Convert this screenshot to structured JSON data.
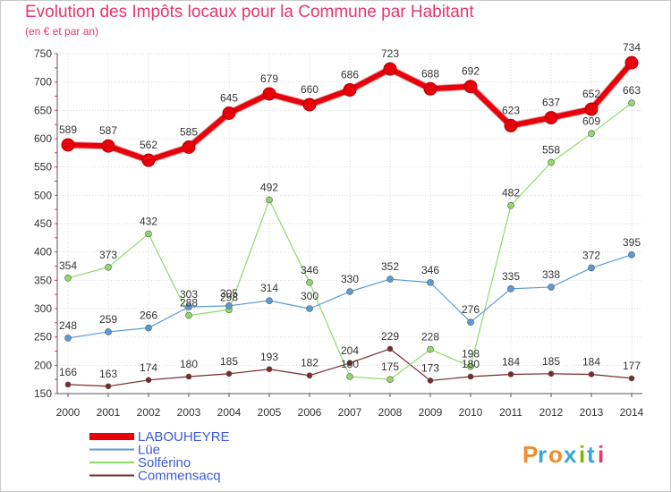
{
  "header": {
    "title": "Evolution des Impôts locaux pour la Commune par Habitant",
    "subtitle": "(en € et par an)"
  },
  "logo": {
    "text": "Proxiti",
    "colors": [
      "#f28c28",
      "#3aa4dc",
      "#f28c28",
      "#3aa4dc",
      "#7ab800",
      "#3aa4dc",
      "#e8356a"
    ]
  },
  "chart_data": {
    "type": "line",
    "title": "Evolution des Impôts locaux pour la Commune par Habitant",
    "subtitle": "(en € et par an)",
    "x": [
      2000,
      2001,
      2002,
      2003,
      2004,
      2005,
      2006,
      2007,
      2008,
      2009,
      2010,
      2011,
      2012,
      2013,
      2014
    ],
    "ylim": [
      150,
      750
    ],
    "yticks": [
      150,
      200,
      250,
      300,
      350,
      400,
      450,
      500,
      550,
      600,
      650,
      700,
      750
    ],
    "grid": true,
    "legend_position": "bottom-left",
    "series": [
      {
        "name": "LABOUHEYRE",
        "color": "#e8000b",
        "width": 6,
        "marker": 7,
        "values": [
          589,
          587,
          562,
          585,
          645,
          679,
          660,
          686,
          723,
          688,
          692,
          623,
          637,
          652,
          734
        ]
      },
      {
        "name": "Lüe",
        "color": "#5b9bd5",
        "width": 1.2,
        "marker": 3.5,
        "values": [
          248,
          259,
          266,
          303,
          305,
          314,
          300,
          330,
          352,
          346,
          276,
          335,
          338,
          372,
          395
        ]
      },
      {
        "name": "Solférino",
        "color": "#8fd96a",
        "width": 1.2,
        "marker": 3.5,
        "values": [
          354,
          373,
          432,
          288,
          298,
          492,
          346,
          180,
          175,
          228,
          198,
          482,
          558,
          609,
          663
        ]
      },
      {
        "name": "Commensacq",
        "color": "#7b2a2a",
        "width": 1.2,
        "marker": 3,
        "values": [
          166,
          163,
          174,
          180,
          185,
          193,
          182,
          204,
          229,
          173,
          180,
          184,
          185,
          184,
          177
        ]
      }
    ],
    "data_labels": [
      {
        "series": 0,
        "labels": [
          "589",
          "587",
          "562",
          "585",
          "645",
          "679",
          "660",
          "686",
          "723",
          "688",
          "692",
          "623",
          "637",
          "652",
          "734"
        ]
      },
      {
        "series": 1,
        "labels": [
          "248",
          "259",
          "266",
          "303",
          "305",
          "314",
          "300",
          "330",
          "352",
          "346",
          "276",
          "335",
          "338",
          "372",
          "395"
        ]
      },
      {
        "series": 2,
        "labels": [
          "354",
          "373",
          "432",
          "288",
          "298",
          "492",
          "346",
          "180",
          "175",
          "228",
          "198",
          "482",
          "558",
          "609",
          "663"
        ]
      },
      {
        "series": 3,
        "labels": [
          "166",
          "163",
          "174",
          "180",
          "185",
          "193",
          "182",
          "204",
          "229",
          "173",
          "180",
          "184",
          "185",
          "184",
          "177"
        ]
      }
    ]
  }
}
